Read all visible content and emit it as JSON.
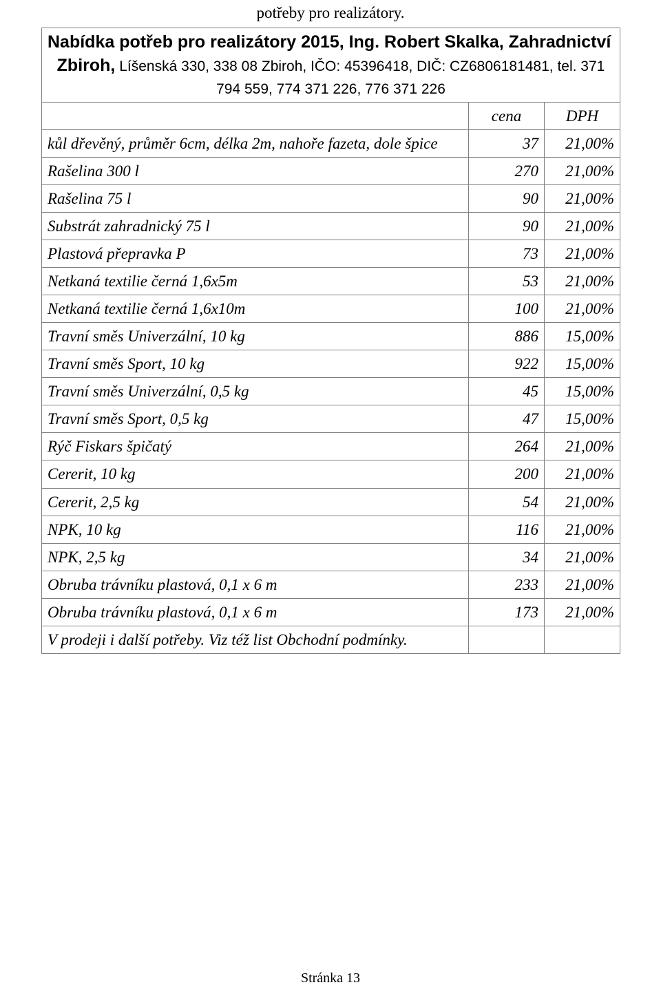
{
  "top_caption": "potřeby pro realizátory.",
  "header_line1": "Nabídka potřeb pro realizátory 2015, Ing. Robert Skalka, Zahradnictví",
  "header_line2_bold": "Zbiroh,",
  "header_line2_rest": " Líšenská 330, 338 08 Zbiroh, IČO: 45396418, DIČ: CZ6806181481, tel. 371 794 559, 774 371 226, 776 371 226",
  "col_price_label": "cena",
  "col_vat_label": "DPH",
  "rows": [
    {
      "item": "kůl dřevěný, průměr 6cm, délka 2m, nahoře fazeta, dole špice",
      "price": "37",
      "vat": "21,00%"
    },
    {
      "item": "Rašelina 300 l",
      "price": "270",
      "vat": "21,00%"
    },
    {
      "item": "Rašelina 75 l",
      "price": "90",
      "vat": "21,00%"
    },
    {
      "item": "Substrát zahradnický 75 l",
      "price": "90",
      "vat": "21,00%"
    },
    {
      "item": "Plastová přepravka P",
      "price": "73",
      "vat": "21,00%"
    },
    {
      "item": "Netkaná textilie černá 1,6x5m",
      "price": "53",
      "vat": "21,00%"
    },
    {
      "item": "Netkaná textilie černá 1,6x10m",
      "price": "100",
      "vat": "21,00%"
    },
    {
      "item": "Travní směs Univerzální, 10 kg",
      "price": "886",
      "vat": "15,00%"
    },
    {
      "item": "Travní směs Sport, 10 kg",
      "price": "922",
      "vat": "15,00%"
    },
    {
      "item": "Travní směs Univerzální, 0,5 kg",
      "price": "45",
      "vat": "15,00%"
    },
    {
      "item": "Travní směs Sport, 0,5 kg",
      "price": "47",
      "vat": "15,00%"
    },
    {
      "item": "Rýč Fiskars špičatý",
      "price": "264",
      "vat": "21,00%"
    },
    {
      "item": "Cererit, 10 kg",
      "price": "200",
      "vat": "21,00%"
    },
    {
      "item": "Cererit, 2,5 kg",
      "price": "54",
      "vat": "21,00%"
    },
    {
      "item": "NPK, 10 kg",
      "price": "116",
      "vat": "21,00%"
    },
    {
      "item": "NPK, 2,5 kg",
      "price": "34",
      "vat": "21,00%"
    },
    {
      "item": "Obruba trávníku plastová, 0,1 x 6 m",
      "price": "233",
      "vat": "21,00%"
    },
    {
      "item": "Obruba trávníku plastová, 0,1 x 6 m",
      "price": "173",
      "vat": "21,00%"
    },
    {
      "item": "V prodeji i další potřeby. Viz též list Obchodní podmínky.",
      "price": "",
      "vat": ""
    }
  ],
  "footer": "Stránka 13",
  "colors": {
    "border": "#808080",
    "text": "#000000",
    "background": "#ffffff"
  }
}
